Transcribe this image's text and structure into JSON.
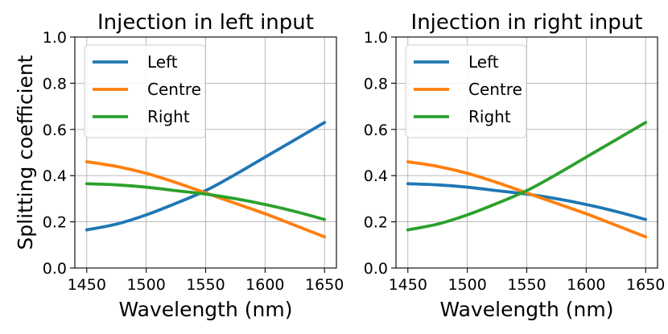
{
  "chart_data": [
    {
      "type": "line",
      "title": "Injection in left input",
      "xlabel": "Wavelength (nm)",
      "ylabel": "Splitting coefficient",
      "xlim": [
        1440,
        1660
      ],
      "ylim": [
        0.0,
        1.0
      ],
      "xticks": [
        1450,
        1500,
        1550,
        1600,
        1650
      ],
      "xtick_labels": [
        "1450",
        "1500",
        "1550",
        "1600",
        "1650"
      ],
      "yticks": [
        0.0,
        0.2,
        0.4,
        0.6,
        0.8,
        1.0
      ],
      "ytick_labels": [
        "0.0",
        "0.2",
        "0.4",
        "0.6",
        "0.8",
        "1.0"
      ],
      "grid": true,
      "legend_position": "top-left",
      "x": [
        1450,
        1475,
        1500,
        1525,
        1550,
        1575,
        1600,
        1625,
        1650
      ],
      "series": [
        {
          "name": "Left",
          "color": "#1f77b4",
          "values": [
            0.165,
            0.19,
            0.23,
            0.28,
            0.335,
            0.405,
            0.48,
            0.555,
            0.63
          ]
        },
        {
          "name": "Centre",
          "color": "#ff7f0e",
          "values": [
            0.46,
            0.44,
            0.41,
            0.37,
            0.325,
            0.28,
            0.235,
            0.185,
            0.135
          ]
        },
        {
          "name": "Right",
          "color": "#2ca02c",
          "values": [
            0.365,
            0.36,
            0.35,
            0.335,
            0.32,
            0.3,
            0.275,
            0.245,
            0.21
          ]
        }
      ]
    },
    {
      "type": "line",
      "title": "Injection in right input",
      "xlabel": "Wavelength (nm)",
      "ylabel": "",
      "xlim": [
        1440,
        1660
      ],
      "ylim": [
        0.0,
        1.0
      ],
      "xticks": [
        1450,
        1500,
        1550,
        1600,
        1650
      ],
      "xtick_labels": [
        "1450",
        "1500",
        "1550",
        "1600",
        "1650"
      ],
      "yticks": [
        0.0,
        0.2,
        0.4,
        0.6,
        0.8,
        1.0
      ],
      "ytick_labels": [
        "0.0",
        "0.2",
        "0.4",
        "0.6",
        "0.8",
        "1.0"
      ],
      "grid": true,
      "legend_position": "top-left",
      "x": [
        1450,
        1475,
        1500,
        1525,
        1550,
        1575,
        1600,
        1625,
        1650
      ],
      "series": [
        {
          "name": "Left",
          "color": "#1f77b4",
          "values": [
            0.365,
            0.36,
            0.35,
            0.335,
            0.32,
            0.3,
            0.275,
            0.245,
            0.21
          ]
        },
        {
          "name": "Centre",
          "color": "#ff7f0e",
          "values": [
            0.46,
            0.44,
            0.41,
            0.37,
            0.325,
            0.28,
            0.235,
            0.185,
            0.135
          ]
        },
        {
          "name": "Right",
          "color": "#2ca02c",
          "values": [
            0.165,
            0.19,
            0.23,
            0.28,
            0.335,
            0.405,
            0.48,
            0.555,
            0.63
          ]
        }
      ]
    }
  ]
}
